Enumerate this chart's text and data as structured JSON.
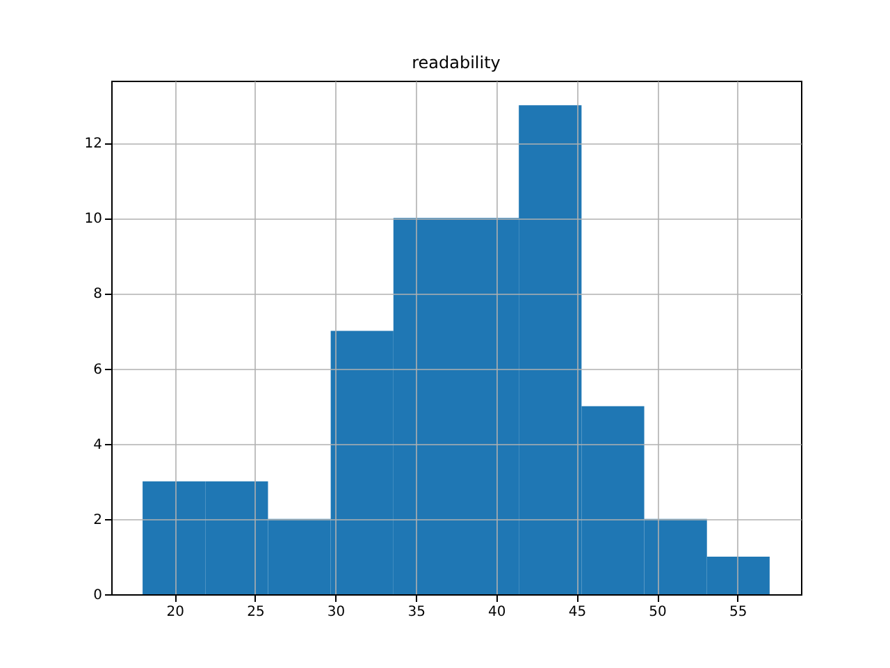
{
  "chart_data": {
    "type": "histogram",
    "title": "readability",
    "bins": [
      18,
      21.9,
      25.8,
      29.7,
      33.6,
      37.5,
      41.4,
      45.3,
      49.2,
      53.1,
      57
    ],
    "values": [
      3,
      3,
      2,
      7,
      10,
      10,
      13,
      5,
      2,
      1
    ],
    "color": "#1f77b4",
    "xlim": [
      16.05,
      58.95
    ],
    "xticks": [
      20,
      25,
      30,
      35,
      40,
      45,
      50,
      55
    ],
    "ylim": [
      0,
      13.65
    ],
    "yticks": [
      0,
      2,
      4,
      6,
      8,
      10,
      12
    ],
    "grid": true
  }
}
